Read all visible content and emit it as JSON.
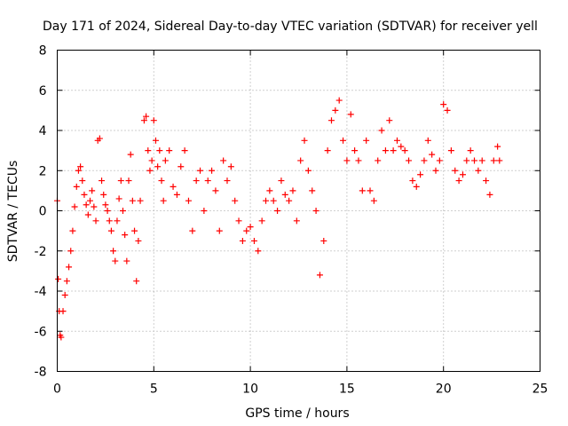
{
  "chart_data": {
    "type": "scatter",
    "title": "Day 171 of 2024, Sidereal Day-to-day VTEC variation (SDTVAR) for receiver yell",
    "xlabel": "GPS time / hours",
    "ylabel": "SDTVAR / TECUs",
    "xlim": [
      0,
      25
    ],
    "ylim": [
      -8,
      8
    ],
    "xticks": [
      0,
      5,
      10,
      15,
      20,
      25
    ],
    "yticks": [
      -8,
      -6,
      -4,
      -2,
      0,
      2,
      4,
      6,
      8
    ],
    "grid": true,
    "marker": "+",
    "series": [
      {
        "name": "SDTVAR",
        "color": "#ff0000",
        "x": [
          0.0,
          0.05,
          0.1,
          0.15,
          0.2,
          0.3,
          0.4,
          0.5,
          0.6,
          0.7,
          0.8,
          0.9,
          1.0,
          1.1,
          1.2,
          1.3,
          1.4,
          1.5,
          1.6,
          1.7,
          1.8,
          1.9,
          2.0,
          2.1,
          2.2,
          2.3,
          2.4,
          2.5,
          2.6,
          2.7,
          2.8,
          2.9,
          3.0,
          3.1,
          3.2,
          3.3,
          3.4,
          3.5,
          3.6,
          3.7,
          3.8,
          3.9,
          4.0,
          4.1,
          4.2,
          4.3,
          4.5,
          4.6,
          4.7,
          4.8,
          4.9,
          5.0,
          5.1,
          5.2,
          5.3,
          5.4,
          5.5,
          5.6,
          5.8,
          6.0,
          6.2,
          6.4,
          6.6,
          6.8,
          7.0,
          7.2,
          7.4,
          7.6,
          7.8,
          8.0,
          8.2,
          8.4,
          8.6,
          8.8,
          9.0,
          9.2,
          9.4,
          9.6,
          9.8,
          10.0,
          10.2,
          10.4,
          10.6,
          10.8,
          11.0,
          11.2,
          11.4,
          11.6,
          11.8,
          12.0,
          12.2,
          12.4,
          12.6,
          12.8,
          13.0,
          13.2,
          13.4,
          13.6,
          13.8,
          14.0,
          14.2,
          14.4,
          14.6,
          14.8,
          15.0,
          15.2,
          15.4,
          15.6,
          15.8,
          16.0,
          16.2,
          16.4,
          16.6,
          16.8,
          17.0,
          17.2,
          17.4,
          17.6,
          17.8,
          18.0,
          18.2,
          18.4,
          18.6,
          18.8,
          19.0,
          19.2,
          19.4,
          19.6,
          19.8,
          20.0,
          20.2,
          20.4,
          20.6,
          20.8,
          21.0,
          21.2,
          21.4,
          21.6,
          21.8,
          22.0,
          22.2,
          22.4,
          22.6,
          22.8,
          22.9
        ],
        "y": [
          0.5,
          -3.4,
          -5.0,
          -6.2,
          -6.3,
          -5.0,
          -4.2,
          -3.5,
          -2.8,
          -2.0,
          -1.0,
          0.2,
          1.2,
          2.0,
          2.2,
          1.5,
          0.8,
          0.3,
          -0.2,
          0.5,
          1.0,
          0.2,
          -0.5,
          3.5,
          3.6,
          1.5,
          0.8,
          0.3,
          0.0,
          -0.5,
          -1.0,
          -2.0,
          -2.5,
          -0.5,
          0.6,
          1.5,
          0.0,
          -1.2,
          -2.5,
          1.5,
          2.8,
          0.5,
          -1.0,
          -3.5,
          -1.5,
          0.5,
          4.5,
          4.7,
          3.0,
          2.0,
          2.5,
          4.5,
          3.5,
          2.2,
          3.0,
          1.5,
          0.5,
          2.5,
          3.0,
          1.2,
          0.8,
          2.2,
          3.0,
          0.5,
          -1.0,
          1.5,
          2.0,
          0.0,
          1.5,
          2.0,
          1.0,
          -1.0,
          2.5,
          1.5,
          2.2,
          0.5,
          -0.5,
          -1.5,
          -1.0,
          -0.8,
          -1.5,
          -2.0,
          -0.5,
          0.5,
          1.0,
          0.5,
          0.0,
          1.5,
          0.8,
          0.5,
          1.0,
          -0.5,
          2.5,
          3.5,
          2.0,
          1.0,
          0.0,
          -3.2,
          -1.5,
          3.0,
          4.5,
          5.0,
          5.5,
          3.5,
          2.5,
          4.8,
          3.0,
          2.5,
          1.0,
          3.5,
          1.0,
          0.5,
          2.5,
          4.0,
          3.0,
          4.5,
          3.0,
          3.5,
          3.2,
          3.0,
          2.5,
          1.5,
          1.2,
          1.8,
          2.5,
          3.5,
          2.8,
          2.0,
          2.5,
          5.3,
          5.0,
          3.0,
          2.0,
          1.5,
          1.8,
          2.5,
          3.0,
          2.5,
          2.0,
          2.5,
          1.5,
          0.8,
          2.5,
          3.2,
          2.5
        ]
      }
    ]
  }
}
